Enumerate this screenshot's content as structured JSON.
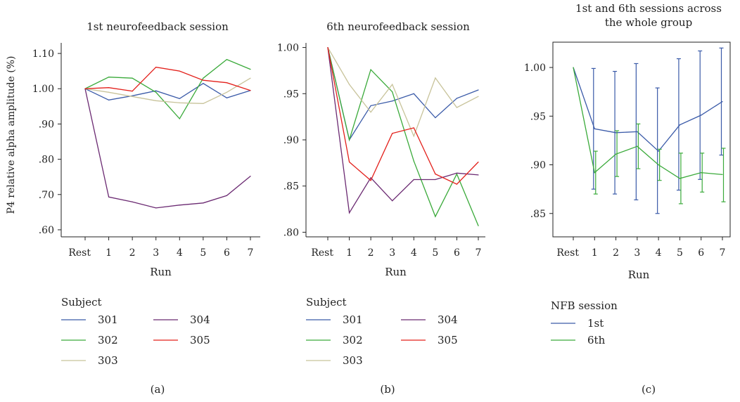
{
  "ylabel": "P4 relative alpha amplitude (%)",
  "colors": {
    "301": "#3a5aa8",
    "302": "#3aaa3a",
    "303": "#c8c39a",
    "304": "#6b2a72",
    "305": "#e3201b",
    "1st": "#3a5aa8",
    "6th": "#3aaa3a"
  },
  "chart_data": [
    {
      "type": "line",
      "title": "1st neurofeedback session",
      "xlabel": "Run",
      "categories": [
        "Rest",
        "1",
        "2",
        "3",
        "4",
        "5",
        "6",
        "7"
      ],
      "ylim": [
        0.58,
        1.13
      ],
      "yticks": [
        0.6,
        0.7,
        0.8,
        0.9,
        1.0,
        1.1
      ],
      "ytick_labels": [
        ".60",
        ".70",
        ".80",
        ".90",
        "1.00",
        "1.10"
      ],
      "legend_title": "Subject",
      "series": [
        {
          "name": "301",
          "values": [
            1.0,
            0.968,
            0.98,
            0.994,
            0.972,
            1.015,
            0.974,
            0.995
          ]
        },
        {
          "name": "302",
          "values": [
            1.0,
            1.033,
            1.03,
            0.99,
            0.915,
            1.03,
            1.083,
            1.055
          ]
        },
        {
          "name": "303",
          "values": [
            1.0,
            0.99,
            0.978,
            0.966,
            0.96,
            0.958,
            0.99,
            1.03
          ]
        },
        {
          "name": "304",
          "values": [
            1.0,
            0.693,
            0.679,
            0.662,
            0.67,
            0.676,
            0.697,
            0.752
          ]
        },
        {
          "name": "305",
          "values": [
            1.0,
            1.003,
            0.993,
            1.061,
            1.05,
            1.024,
            1.017,
            0.995
          ]
        }
      ],
      "caption": "(a)"
    },
    {
      "type": "line",
      "title": "6th neurofeedback session",
      "xlabel": "Run",
      "categories": [
        "Rest",
        "1",
        "2",
        "3",
        "4",
        "5",
        "6",
        "7"
      ],
      "ylim": [
        0.795,
        1.005
      ],
      "yticks": [
        0.8,
        0.85,
        0.9,
        0.95,
        1.0
      ],
      "ytick_labels": [
        ".80",
        ".85",
        ".90",
        ".95",
        "1.00"
      ],
      "legend_title": "Subject",
      "series": [
        {
          "name": "301",
          "values": [
            1.0,
            0.9,
            0.937,
            0.942,
            0.95,
            0.924,
            0.945,
            0.954
          ]
        },
        {
          "name": "302",
          "values": [
            1.0,
            0.9,
            0.976,
            0.952,
            0.877,
            0.817,
            0.863,
            0.807
          ]
        },
        {
          "name": "303",
          "values": [
            1.0,
            0.96,
            0.93,
            0.96,
            0.904,
            0.967,
            0.935,
            0.947
          ]
        },
        {
          "name": "304",
          "values": [
            1.0,
            0.821,
            0.859,
            0.834,
            0.857,
            0.857,
            0.864,
            0.862
          ]
        },
        {
          "name": "305",
          "values": [
            1.0,
            0.876,
            0.856,
            0.907,
            0.913,
            0.863,
            0.852,
            0.876
          ]
        }
      ],
      "caption": "(b)"
    },
    {
      "type": "line",
      "title": "1st and 6th sessions across the whole group",
      "title_lines": [
        "1st and 6th sessions across",
        "the whole group"
      ],
      "xlabel": "Run",
      "categories": [
        "Rest",
        "1",
        "2",
        "3",
        "4",
        "5",
        "6",
        "7"
      ],
      "ylim": [
        0.826,
        1.026
      ],
      "yticks": [
        0.85,
        0.9,
        0.95,
        1.0
      ],
      "ytick_labels": [
        ".85",
        ".90",
        ".95",
        "1.00"
      ],
      "legend_title": "NFB session",
      "series": [
        {
          "name": "1st",
          "values": [
            1.0,
            0.937,
            0.933,
            0.934,
            0.914,
            0.941,
            0.951,
            0.965
          ],
          "error_low": [
            1.0,
            0.875,
            0.87,
            0.864,
            0.85,
            0.874,
            0.885,
            0.91
          ],
          "error_high": [
            1.0,
            0.999,
            0.996,
            1.004,
            0.979,
            1.009,
            1.017,
            1.02
          ]
        },
        {
          "name": "6th",
          "values": [
            1.0,
            0.892,
            0.911,
            0.919,
            0.9,
            0.886,
            0.892,
            0.89
          ],
          "error_low": [
            1.0,
            0.87,
            0.888,
            0.896,
            0.884,
            0.86,
            0.872,
            0.862
          ],
          "error_high": [
            1.0,
            0.914,
            0.935,
            0.942,
            0.916,
            0.912,
            0.912,
            0.917
          ]
        }
      ],
      "caption": "(c)"
    }
  ]
}
